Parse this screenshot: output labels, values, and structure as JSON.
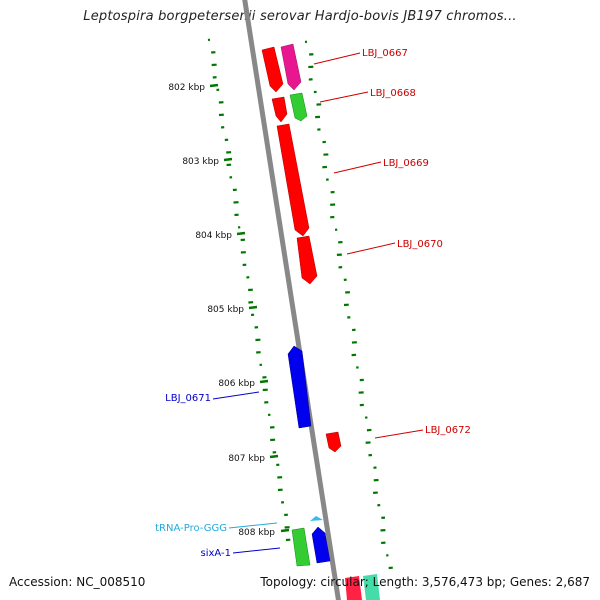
{
  "title": "Leptospira borgpetersenii serovar Hardjo-bovis JB197 chromos...",
  "footer": {
    "accession": "Accession: NC_008510",
    "summary": "Topology: circular; Length: 3,576,473 bp; Genes: 2,687"
  },
  "ticks": [
    {
      "label": "802 kbp"
    },
    {
      "label": "803 kbp"
    },
    {
      "label": "804 kbp"
    },
    {
      "label": "805 kbp"
    },
    {
      "label": "806 kbp"
    },
    {
      "label": "807 kbp"
    },
    {
      "label": "808 kbp"
    }
  ],
  "features": [
    {
      "label": "LBJ_0667",
      "strand": "+",
      "color": "#e8178f",
      "label_color": "#cc0000"
    },
    {
      "label": "LBJ_0668",
      "strand": "+",
      "color": "#33cc33",
      "label_color": "#cc0000"
    },
    {
      "label": "LBJ_0669",
      "strand": "+",
      "color": "#ff0000",
      "label_color": "#cc0000"
    },
    {
      "label": "LBJ_0670",
      "strand": "+",
      "color": "#ff0000",
      "label_color": "#cc0000"
    },
    {
      "label": "LBJ_0671",
      "strand": "-",
      "color": "#0000ee",
      "label_color": "#0000cc"
    },
    {
      "label": "LBJ_0672",
      "strand": "+",
      "color": "#ff0000",
      "label_color": "#cc0000"
    },
    {
      "label": "tRNA-Pro-GGG",
      "strand": "+",
      "color": "#33bbee",
      "label_color": "#22aadd"
    },
    {
      "label": "sixA-1",
      "strand": "+",
      "color": "#0000ee",
      "label_color": "#0000cc"
    }
  ],
  "colors": {
    "backbone": "#888888",
    "gc_skew_dots": "#007700",
    "background": "#ffffff"
  }
}
